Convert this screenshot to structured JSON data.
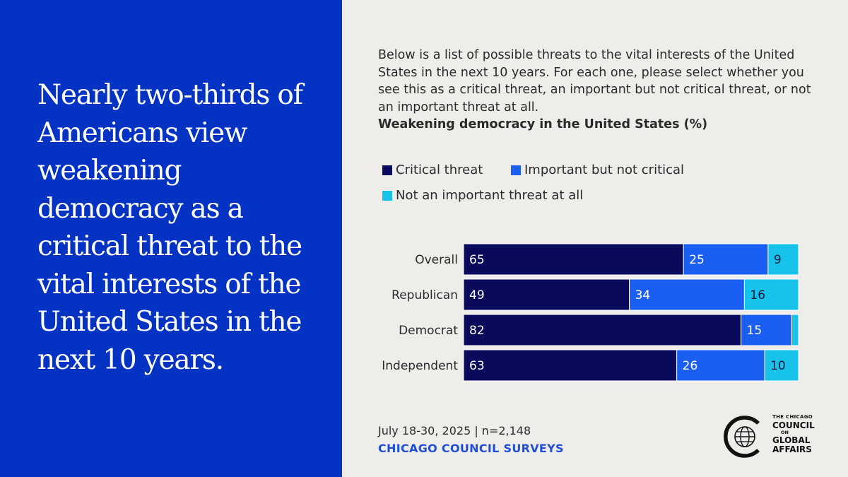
{
  "headline": "Nearly two-thirds of Americans view weakening democracy as a critical threat to the vital interests of the United States in the next 10 years.",
  "question": "Below is a list of possible threats to the vital interests of the United States in the next 10 years. For each one, please select whether you see this as a critical threat, an important but not critical threat, or not an important threat at all.",
  "footer": {
    "date": "July 18-30, 2025 | n=2,148",
    "source": "CHICAGO COUNCIL SURVEYS"
  },
  "logo": {
    "line1": "THE CHICAGO",
    "line2": "COUNCIL",
    "line3": "ON",
    "line4": "GLOBAL",
    "line5": "AFFAIRS"
  },
  "colors": {
    "left_panel": "#0433c4",
    "background": "#efede9",
    "critical": "#0a0a5c",
    "important": "#1b5ff2",
    "not_important": "#17c3ea"
  },
  "chart_data": {
    "type": "bar",
    "orientation": "horizontal",
    "stacked": true,
    "title": "Weakening democracy in the United States (%)",
    "legend_position": "top",
    "categories": [
      "Overall",
      "Republican",
      "Democrat",
      "Independent"
    ],
    "series": [
      {
        "name": "Critical threat",
        "color": "#0a0a5c",
        "values": [
          65,
          49,
          82,
          63
        ],
        "labels": [
          "65",
          "49",
          "82",
          "63"
        ]
      },
      {
        "name": "Important but not critical",
        "color": "#1b5ff2",
        "values": [
          25,
          34,
          15,
          26
        ],
        "labels": [
          "25",
          "34",
          "15",
          "26"
        ]
      },
      {
        "name": "Not an important threat at all",
        "color": "#17c3ea",
        "values": [
          9,
          16,
          2,
          10
        ],
        "labels": [
          "9",
          "16",
          "",
          "10"
        ]
      }
    ],
    "xlim": [
      0,
      100
    ],
    "grid": false
  }
}
